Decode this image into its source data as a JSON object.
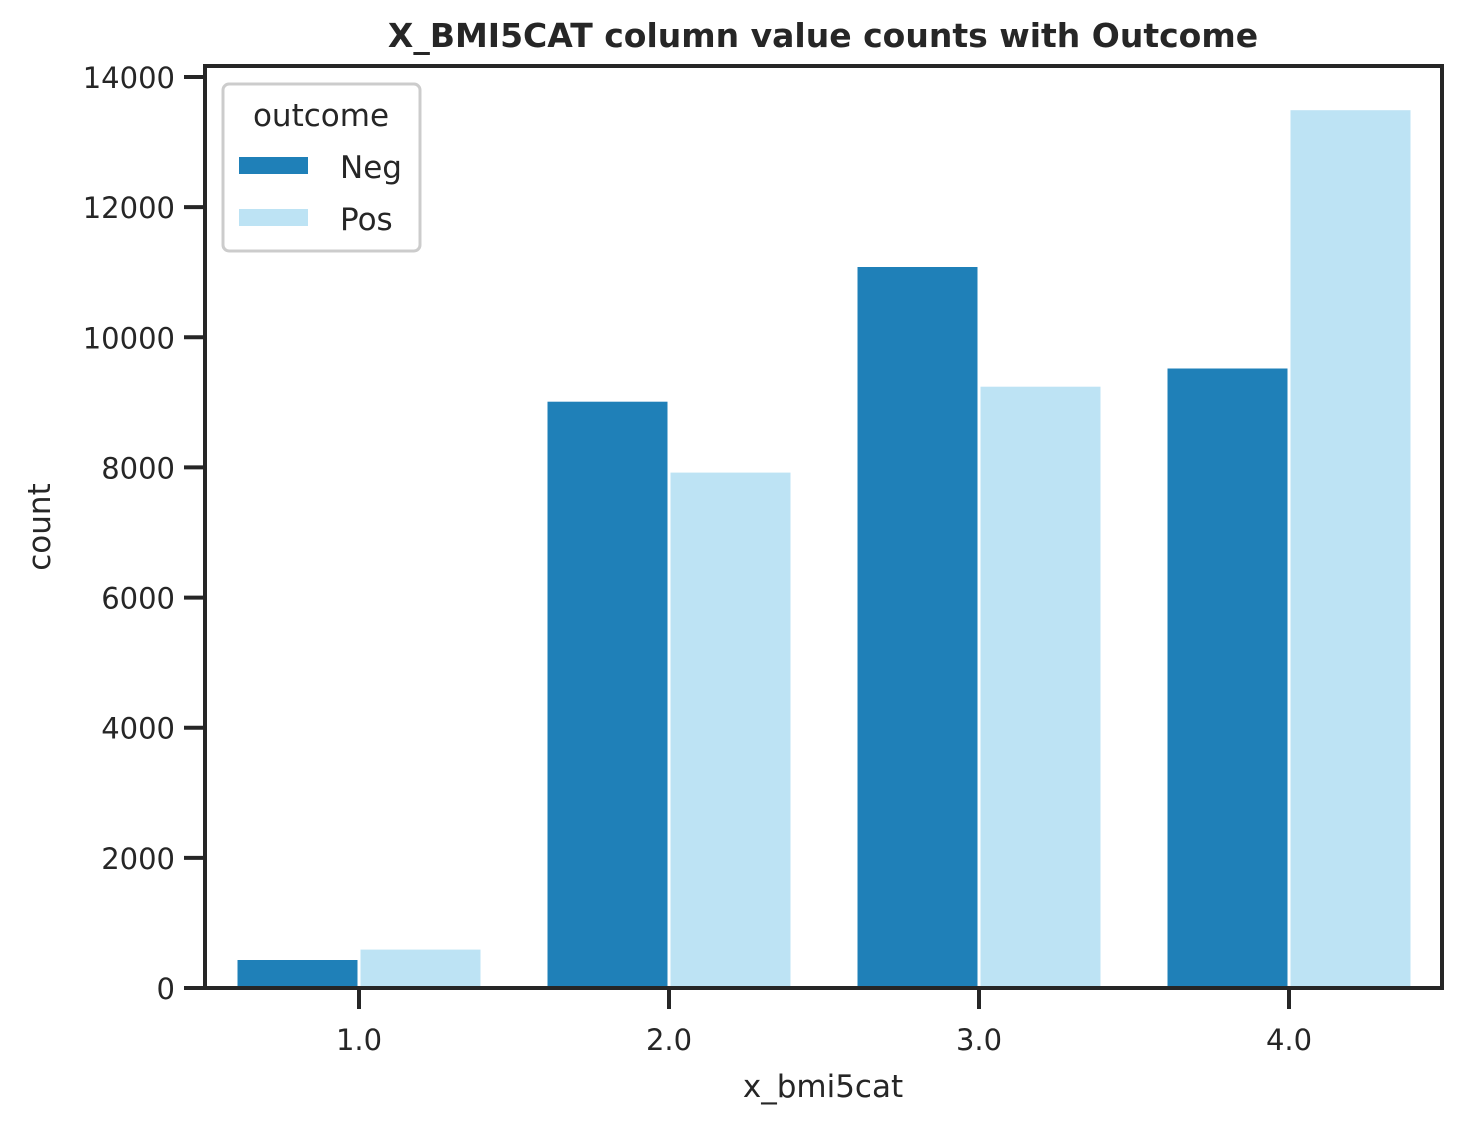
{
  "chart_data": {
    "type": "bar",
    "title": "X_BMI5CAT column value counts with Outcome",
    "xlabel": "x_bmi5cat",
    "ylabel": "count",
    "categories": [
      "1.0",
      "2.0",
      "3.0",
      "4.0"
    ],
    "ylim": [
      0,
      14000
    ],
    "yticks": [
      0,
      2000,
      4000,
      6000,
      8000,
      10000,
      12000,
      14000
    ],
    "grid": false,
    "legend": {
      "title": "outcome",
      "placement": "upper-left"
    },
    "series": [
      {
        "name": "Neg",
        "color": "#1f80b8",
        "values": [
          430,
          9010,
          11080,
          9520
        ]
      },
      {
        "name": "Pos",
        "color": "#bde3f4",
        "values": [
          590,
          7920,
          9240,
          13490
        ]
      }
    ]
  }
}
